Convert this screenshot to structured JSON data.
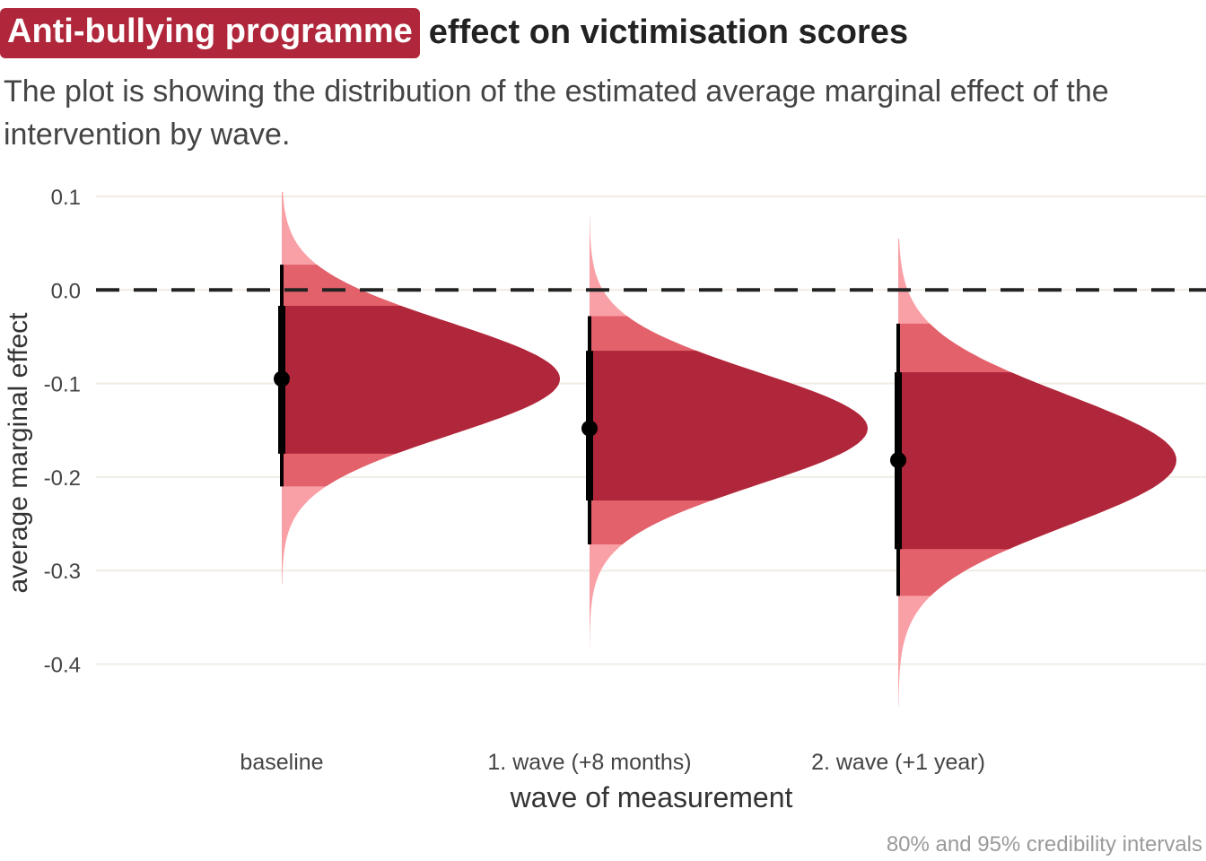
{
  "title": {
    "highlight": "Anti-bullying programme",
    "rest": "effect on victimisation scores"
  },
  "subtitle": "The plot is showing the distribution of the estimated average marginal effect of the intervention by wave.",
  "caption": "80% and 95% credibility intervals",
  "colors": {
    "highlight": "#b0273b",
    "interval_80": "#b0273b",
    "interval_95": "#e2616b",
    "tail": "#f9a0a6",
    "point": "#000000",
    "zero_line": "#222222",
    "grid": "#f0ebe4"
  },
  "chart_data": {
    "type": "halfeye",
    "xlabel": "wave of measurement",
    "ylabel": "average marginal effect",
    "ylim": [
      -0.45,
      0.1
    ],
    "yticks": [
      0.1,
      0.0,
      -0.1,
      -0.2,
      -0.3,
      -0.4
    ],
    "ytick_labels": [
      "0.1",
      "0.0",
      "-0.1",
      "-0.2",
      "-0.3",
      "-0.4"
    ],
    "reference_line": 0.0,
    "categories": [
      "baseline",
      "1. wave (+8 months)",
      "2. wave (+1 year)"
    ],
    "series": [
      {
        "category": "baseline",
        "median": -0.095,
        "interval_80": [
          -0.175,
          -0.017
        ],
        "interval_95": [
          -0.21,
          0.027
        ],
        "range": [
          -0.315,
          0.105
        ],
        "sd": 0.06
      },
      {
        "category": "1. wave (+8 months)",
        "median": -0.148,
        "interval_80": [
          -0.225,
          -0.065
        ],
        "interval_95": [
          -0.272,
          -0.028
        ],
        "range": [
          -0.385,
          0.08
        ],
        "sd": 0.06
      },
      {
        "category": "2. wave (+1 year)",
        "median": -0.182,
        "interval_80": [
          -0.277,
          -0.088
        ],
        "interval_95": [
          -0.327,
          -0.036
        ],
        "range": [
          -0.445,
          0.055
        ],
        "sd": 0.07
      }
    ]
  }
}
